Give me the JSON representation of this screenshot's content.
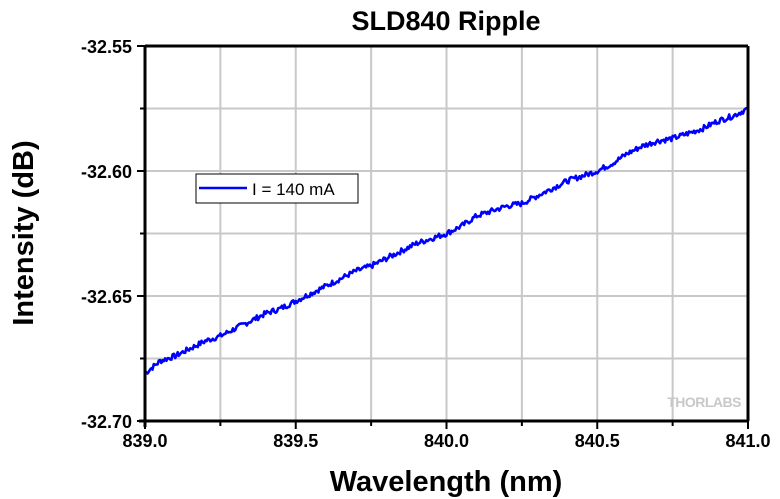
{
  "chart_data": {
    "type": "line",
    "title": "SLD840 Ripple",
    "xlabel": "Wavelength (nm)",
    "ylabel": "Intensity (dB)",
    "xlim": [
      839.0,
      841.0
    ],
    "ylim": [
      -32.7,
      -32.55
    ],
    "xticks": [
      839.0,
      839.5,
      840.0,
      840.5,
      841.0
    ],
    "xtick_labels": [
      "839.0",
      "839.5",
      "840.0",
      "840.5",
      "841.0"
    ],
    "yticks": [
      -32.7,
      -32.65,
      -32.6,
      -32.55
    ],
    "ytick_labels": [
      "-32.70",
      "-32.65",
      "-32.60",
      "-32.55"
    ],
    "x_minor_step": 0.25,
    "y_minor_step": 0.025,
    "grid": true,
    "legend": {
      "position": "upper-left",
      "entries": [
        "I = 140 mA"
      ]
    },
    "series": [
      {
        "name": "I = 140 mA",
        "color": "#0000ff",
        "x": [
          839.0,
          839.05,
          839.1,
          839.15,
          839.2,
          839.25,
          839.3,
          839.35,
          839.4,
          839.45,
          839.5,
          839.55,
          839.6,
          839.65,
          839.7,
          839.75,
          839.8,
          839.85,
          839.9,
          839.95,
          840.0,
          840.05,
          840.1,
          840.15,
          840.2,
          840.25,
          840.3,
          840.35,
          840.4,
          840.45,
          840.5,
          840.55,
          840.6,
          840.65,
          840.7,
          840.75,
          840.8,
          840.85,
          840.9,
          840.95,
          841.0
        ],
        "y": [
          -32.681,
          -32.676,
          -32.674,
          -32.671,
          -32.668,
          -32.666,
          -32.663,
          -32.66,
          -32.657,
          -32.655,
          -32.652,
          -32.649,
          -32.646,
          -32.643,
          -32.64,
          -32.638,
          -32.635,
          -32.632,
          -32.629,
          -32.627,
          -32.625,
          -32.622,
          -32.618,
          -32.616,
          -32.614,
          -32.613,
          -32.61,
          -32.607,
          -32.604,
          -32.602,
          -32.6,
          -32.597,
          -32.593,
          -32.59,
          -32.588,
          -32.587,
          -32.585,
          -32.583,
          -32.58,
          -32.578,
          -32.575
        ]
      }
    ],
    "watermark": "THORLABS"
  }
}
